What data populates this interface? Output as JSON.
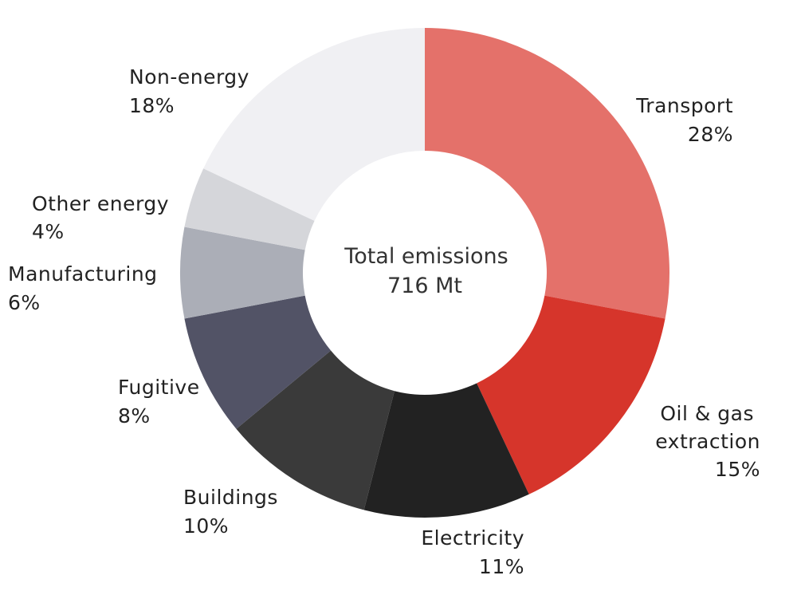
{
  "chart_data": {
    "type": "pie",
    "donut": true,
    "center_label": "Total emissions",
    "center_value": "716 Mt",
    "slices": [
      {
        "name": "Transport",
        "pct_label": "28%",
        "value": 28,
        "color": "#e4716a"
      },
      {
        "name": "Oil & gas extraction",
        "name_lines": [
          "Oil & gas",
          "extraction"
        ],
        "pct_label": "15%",
        "value": 15,
        "color": "#d6352b"
      },
      {
        "name": "Electricity",
        "pct_label": "11%",
        "value": 11,
        "color": "#222222"
      },
      {
        "name": "Buildings",
        "pct_label": "10%",
        "value": 10,
        "color": "#3a3a3a"
      },
      {
        "name": "Fugitive",
        "pct_label": "8%",
        "value": 8,
        "color": "#525366"
      },
      {
        "name": "Manufacturing",
        "pct_label": "6%",
        "value": 6,
        "color": "#abaeb7"
      },
      {
        "name": "Other energy",
        "pct_label": "4%",
        "value": 4,
        "color": "#d5d6da"
      },
      {
        "name": "Non-energy",
        "pct_label": "18%",
        "value": 18,
        "color": "#f0f0f3"
      }
    ]
  }
}
